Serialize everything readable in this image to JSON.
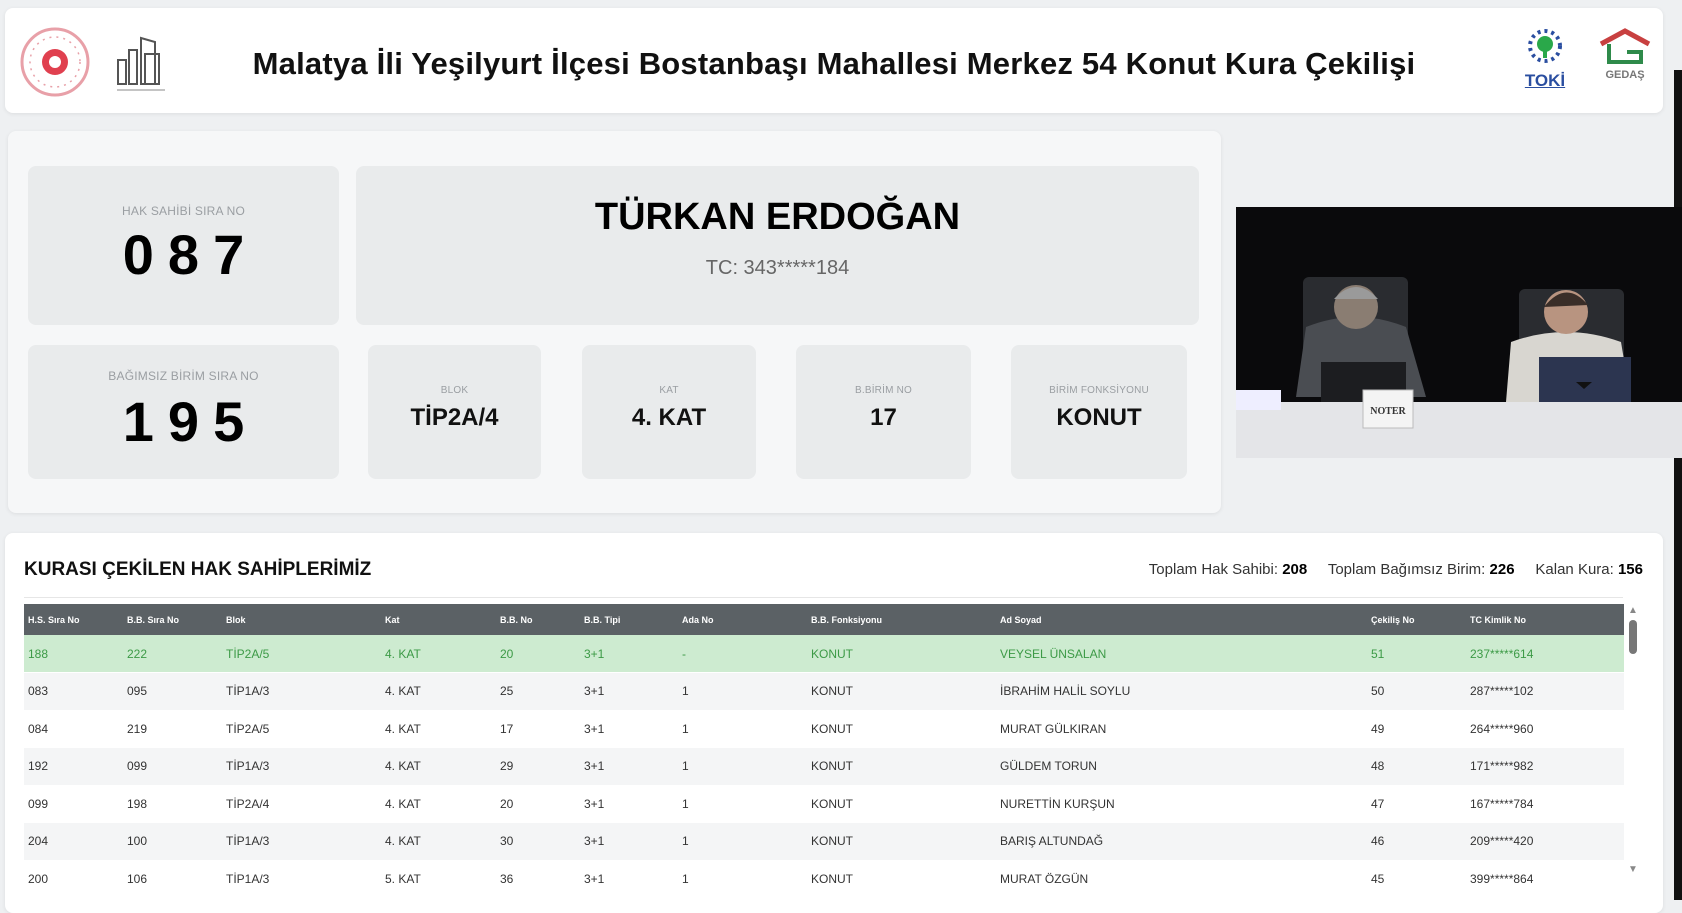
{
  "header": {
    "title": "Malatya İli Yeşilyurt İlçesi Bostanbaşı Mahallesi Merkez 54 Konut Kura Çekilişi",
    "logos": {
      "left1": "ministry-seal-logo",
      "left2": "city-building-logo",
      "right1": "TOKİ",
      "right2": "GEDAŞ"
    }
  },
  "current": {
    "hak_sahibi_label": "HAK SAHİBİ SIRA NO",
    "hak_sahibi_no": "087",
    "name": "TÜRKAN ERDOĞAN",
    "tc": "TC: 343*****184",
    "bb_label": "BAĞIMSIZ BİRİM SIRA NO",
    "bb_no": "195",
    "details": [
      {
        "label": "BLOK",
        "value": "TİP2A/4"
      },
      {
        "label": "KAT",
        "value": "4. KAT"
      },
      {
        "label": "B.BİRİM NO",
        "value": "17"
      },
      {
        "label": "BİRİM FONKSİYONU",
        "value": "KONUT"
      }
    ]
  },
  "video": {
    "sign": "NOTER"
  },
  "list": {
    "title": "KURASI ÇEKİLEN HAK SAHİPLERİMİZ",
    "stats": [
      {
        "label": "Toplam Hak Sahibi:",
        "value": "208"
      },
      {
        "label": "Toplam Bağımsız Birim:",
        "value": "226"
      },
      {
        "label": "Kalan Kura:",
        "value": "156"
      }
    ],
    "columns": [
      "H.S. Sıra No",
      "B.B. Sıra No",
      "Blok",
      "Kat",
      "B.B. No",
      "B.B. Tipi",
      "Ada No",
      "B.B. Fonksiyonu",
      "Ad Soyad",
      "Çekiliş No",
      "TC Kimlik No"
    ],
    "rows": [
      [
        "188",
        "222",
        "TİP2A/5",
        "4. KAT",
        "20",
        "3+1",
        "-",
        "KONUT",
        "VEYSEL ÜNSALAN",
        "51",
        "237*****614"
      ],
      [
        "083",
        "095",
        "TİP1A/3",
        "4. KAT",
        "25",
        "3+1",
        "1",
        "KONUT",
        "İBRAHİM HALİL SOYLU",
        "50",
        "287*****102"
      ],
      [
        "084",
        "219",
        "TİP2A/5",
        "4. KAT",
        "17",
        "3+1",
        "1",
        "KONUT",
        "MURAT GÜLKIRAN",
        "49",
        "264*****960"
      ],
      [
        "192",
        "099",
        "TİP1A/3",
        "4. KAT",
        "29",
        "3+1",
        "1",
        "KONUT",
        "GÜLDEM TORUN",
        "48",
        "171*****982"
      ],
      [
        "099",
        "198",
        "TİP2A/4",
        "4. KAT",
        "20",
        "3+1",
        "1",
        "KONUT",
        "NURETTİN KURŞUN",
        "47",
        "167*****784"
      ],
      [
        "204",
        "100",
        "TİP1A/3",
        "4. KAT",
        "30",
        "3+1",
        "1",
        "KONUT",
        "BARIŞ ALTUNDAĞ",
        "46",
        "209*****420"
      ],
      [
        "200",
        "106",
        "TİP1A/3",
        "5. KAT",
        "36",
        "3+1",
        "1",
        "KONUT",
        "MURAT ÖZGÜN",
        "45",
        "399*****864"
      ]
    ],
    "highlight_color": "#cdebd0"
  }
}
